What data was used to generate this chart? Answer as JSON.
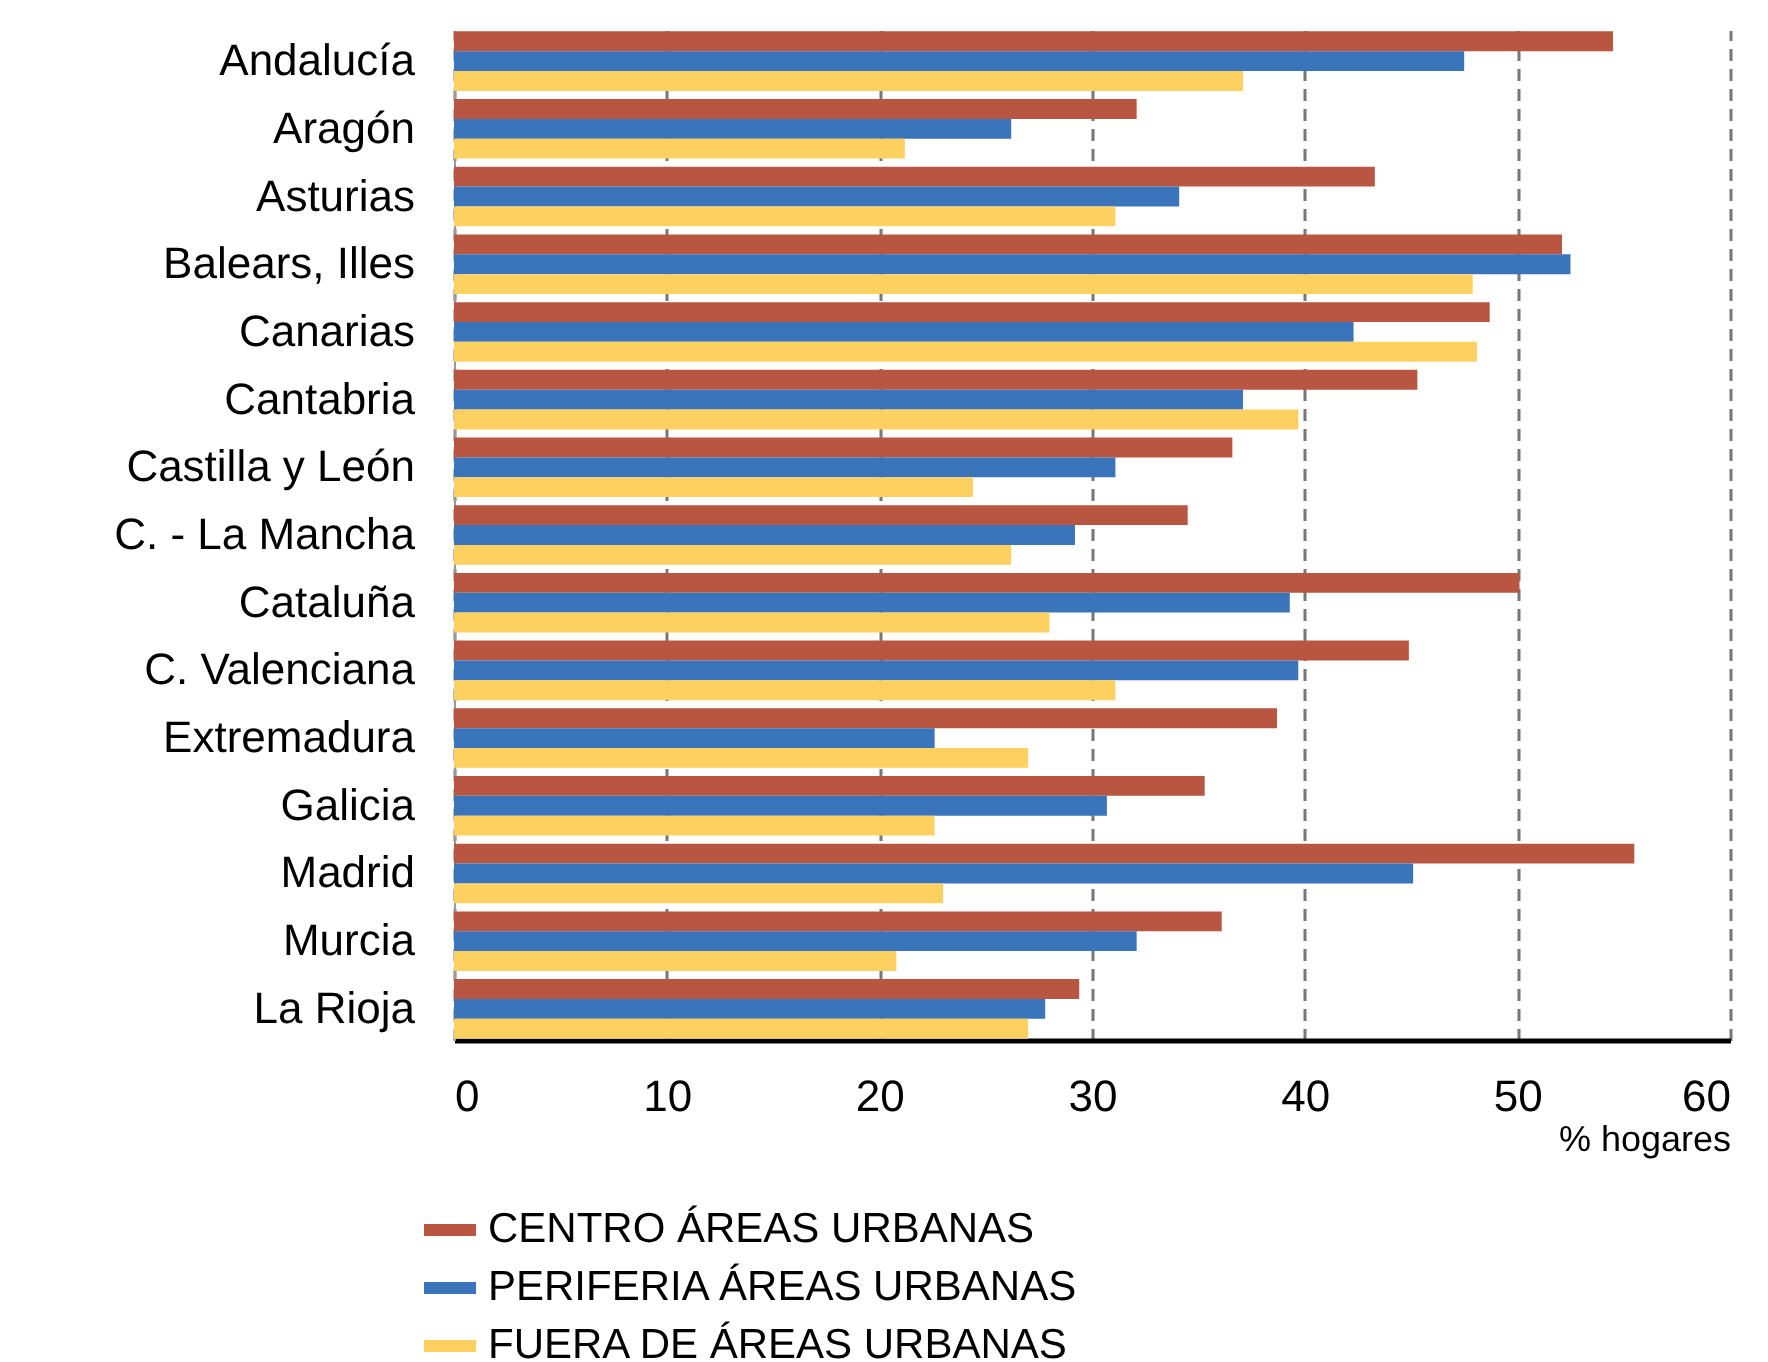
{
  "chart_data": {
    "type": "bar",
    "orientation": "horizontal",
    "xlabel": "% hogares",
    "categories": [
      "Andalucía",
      "Aragón",
      "Asturias",
      "Balears, Illes",
      "Canarias",
      "Cantabria",
      "Castilla y León",
      "C. - La Mancha",
      "Cataluña",
      "C. Valenciana",
      "Extremadura",
      "Galicia",
      "Madrid",
      "Murcia",
      "La Rioja"
    ],
    "series": [
      {
        "name": "CENTRO ÁREAS URBANAS",
        "color": "#b85642",
        "values": [
          54.5,
          32.1,
          43.3,
          52.1,
          48.7,
          45.3,
          36.6,
          34.5,
          50.1,
          44.9,
          38.7,
          35.3,
          55.5,
          36.1,
          29.4
        ]
      },
      {
        "name": "PERIFERIA ÁREAS URBANAS",
        "color": "#3a74ba",
        "values": [
          47.5,
          26.2,
          34.1,
          52.5,
          42.3,
          37.1,
          31.1,
          29.2,
          39.3,
          39.7,
          22.6,
          30.7,
          45.1,
          32.1,
          27.8
        ]
      },
      {
        "name": "FUERA DE ÁREAS URBANAS",
        "color": "#fdd060",
        "values": [
          37.1,
          21.2,
          31.1,
          47.9,
          48.1,
          39.7,
          24.4,
          26.2,
          28.0,
          31.1,
          27.0,
          22.6,
          23.0,
          20.8,
          27.0
        ]
      }
    ],
    "xlim": [
      0,
      60
    ],
    "xticks": [
      0,
      10,
      20,
      30,
      40,
      50,
      60
    ],
    "grid": "x",
    "legend": "bottom left"
  }
}
